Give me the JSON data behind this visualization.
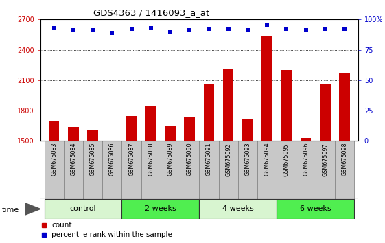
{
  "title": "GDS4363 / 1416093_a_at",
  "samples": [
    "GSM675083",
    "GSM675084",
    "GSM675085",
    "GSM675086",
    "GSM675087",
    "GSM675088",
    "GSM675089",
    "GSM675090",
    "GSM675091",
    "GSM675092",
    "GSM675093",
    "GSM675094",
    "GSM675095",
    "GSM675096",
    "GSM675097",
    "GSM675098"
  ],
  "counts": [
    1700,
    1635,
    1610,
    1505,
    1745,
    1845,
    1650,
    1730,
    2065,
    2210,
    1720,
    2530,
    2200,
    1530,
    2060,
    2175
  ],
  "percentile_ranks": [
    93,
    91,
    91,
    89,
    92,
    93,
    90,
    91,
    92,
    92,
    91,
    95,
    92,
    91,
    92,
    92
  ],
  "groups": [
    {
      "label": "control",
      "start": 0,
      "end": 4,
      "color": "#d8f5d0"
    },
    {
      "label": "2 weeks",
      "start": 4,
      "end": 8,
      "color": "#50ee50"
    },
    {
      "label": "4 weeks",
      "start": 8,
      "end": 12,
      "color": "#d8f5d0"
    },
    {
      "label": "6 weeks",
      "start": 12,
      "end": 16,
      "color": "#50ee50"
    }
  ],
  "ylim_left": [
    1500,
    2700
  ],
  "yticks_left": [
    1500,
    1800,
    2100,
    2400,
    2700
  ],
  "ylim_right": [
    0,
    100
  ],
  "yticks_right": [
    0,
    25,
    50,
    75,
    100
  ],
  "bar_color": "#cc0000",
  "dot_color": "#0000cc",
  "bar_width": 0.55,
  "sample_bg_color": "#c8c8c8",
  "sample_edge_color": "#888888",
  "legend_count_label": "count",
  "legend_percentile_label": "percentile rank within the sample",
  "time_label": "time"
}
